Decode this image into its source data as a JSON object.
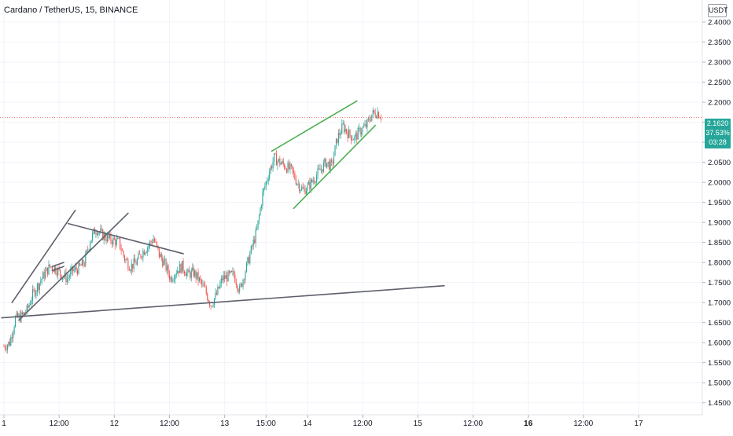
{
  "header": {
    "symbol_title": "Cardano / TetherUS, 15, BINANCE",
    "currency_button": "USDT"
  },
  "price_tag": {
    "price": "2.1620",
    "percent": "37.53%",
    "countdown": "03:28"
  },
  "colors": {
    "up_candle": "#26a69a",
    "down_candle": "#ef5350",
    "trendline_gray": "#5d606b",
    "trendline_green": "#4caf50",
    "last_price_line": "#ef5350",
    "grid": "#f0f3fa",
    "axis_text": "#131722"
  },
  "chart_data": {
    "type": "candlestick",
    "symbol": "ADA/USDT",
    "interval": "15",
    "exchange": "BINANCE",
    "ylim": [
      1.42,
      2.455
    ],
    "x_axis_labels": [
      {
        "label": "1",
        "t": 0
      },
      {
        "label": "12:00",
        "t": 48
      },
      {
        "label": "12",
        "t": 96
      },
      {
        "label": "12:00",
        "t": 144
      },
      {
        "label": "13",
        "t": 192
      },
      {
        "label": "15:00",
        "t": 228
      },
      {
        "label": "14",
        "t": 264
      },
      {
        "label": "12:00",
        "t": 312
      },
      {
        "label": "15",
        "t": 360
      },
      {
        "label": "12:00",
        "t": 408
      },
      {
        "label": "16",
        "t": 456
      },
      {
        "label": "12:00",
        "t": 504
      },
      {
        "label": "17",
        "t": 552
      }
    ],
    "bold_x_labels": [
      "16"
    ],
    "y_axis_labels": [
      "2.4000",
      "2.3500",
      "2.3000",
      "2.2500",
      "2.2000",
      "2.1500",
      "2.1000",
      "2.0500",
      "2.0000",
      "1.9500",
      "1.9000",
      "1.8500",
      "1.8000",
      "1.7500",
      "1.7000",
      "1.6500",
      "1.6000",
      "1.5500",
      "1.5000",
      "1.4500"
    ],
    "y_axis_values": [
      2.4,
      2.35,
      2.3,
      2.25,
      2.2,
      2.15,
      2.1,
      2.05,
      2.0,
      1.95,
      1.9,
      1.85,
      1.8,
      1.75,
      1.7,
      1.65,
      1.6,
      1.55,
      1.5,
      1.45
    ],
    "last_price": 2.162,
    "close_path": [
      [
        0,
        1.59
      ],
      [
        5,
        1.6
      ],
      [
        10,
        1.66
      ],
      [
        15,
        1.665
      ],
      [
        20,
        1.68
      ],
      [
        25,
        1.72
      ],
      [
        30,
        1.745
      ],
      [
        35,
        1.77
      ],
      [
        40,
        1.79
      ],
      [
        45,
        1.785
      ],
      [
        50,
        1.77
      ],
      [
        55,
        1.76
      ],
      [
        60,
        1.78
      ],
      [
        65,
        1.785
      ],
      [
        70,
        1.8
      ],
      [
        75,
        1.855
      ],
      [
        80,
        1.885
      ],
      [
        85,
        1.87
      ],
      [
        90,
        1.86
      ],
      [
        95,
        1.855
      ],
      [
        100,
        1.85
      ],
      [
        105,
        1.81
      ],
      [
        110,
        1.79
      ],
      [
        115,
        1.8
      ],
      [
        120,
        1.825
      ],
      [
        125,
        1.84
      ],
      [
        130,
        1.86
      ],
      [
        135,
        1.82
      ],
      [
        140,
        1.795
      ],
      [
        145,
        1.76
      ],
      [
        150,
        1.78
      ],
      [
        155,
        1.79
      ],
      [
        160,
        1.77
      ],
      [
        165,
        1.775
      ],
      [
        170,
        1.755
      ],
      [
        175,
        1.73
      ],
      [
        180,
        1.695
      ],
      [
        185,
        1.72
      ],
      [
        190,
        1.76
      ],
      [
        195,
        1.765
      ],
      [
        200,
        1.77
      ],
      [
        205,
        1.73
      ],
      [
        210,
        1.78
      ],
      [
        215,
        1.83
      ],
      [
        220,
        1.88
      ],
      [
        225,
        1.97
      ],
      [
        230,
        2.02
      ],
      [
        235,
        2.06
      ],
      [
        240,
        2.05
      ],
      [
        245,
        2.04
      ],
      [
        250,
        2.03
      ],
      [
        255,
        2.0
      ],
      [
        260,
        1.98
      ],
      [
        265,
        1.99
      ],
      [
        270,
        2.01
      ],
      [
        275,
        2.03
      ],
      [
        280,
        2.05
      ],
      [
        285,
        2.04
      ],
      [
        290,
        2.11
      ],
      [
        295,
        2.14
      ],
      [
        300,
        2.12
      ],
      [
        305,
        2.11
      ],
      [
        310,
        2.13
      ],
      [
        315,
        2.14
      ],
      [
        320,
        2.17
      ],
      [
        325,
        2.175
      ],
      [
        328,
        2.165
      ]
    ],
    "trendlines": [
      {
        "color": "gray",
        "points": [
          [
            -2,
            1.662
          ],
          [
            383,
            1.742
          ]
        ]
      },
      {
        "color": "gray",
        "points": [
          [
            7,
            1.7
          ],
          [
            62,
            1.93
          ]
        ]
      },
      {
        "color": "gray",
        "points": [
          [
            13,
            1.656
          ],
          [
            108,
            1.923
          ]
        ]
      },
      {
        "color": "gray",
        "points": [
          [
            56,
            1.897
          ],
          [
            156,
            1.822
          ]
        ]
      },
      {
        "color": "gray",
        "points": [
          [
            42,
            1.79
          ],
          [
            52,
            1.8
          ]
        ]
      },
      {
        "color": "gray",
        "points": [
          [
            42,
            1.78
          ],
          [
            52,
            1.79
          ]
        ]
      },
      {
        "color": "green",
        "points": [
          [
            233,
            2.078
          ],
          [
            307,
            2.203
          ]
        ]
      },
      {
        "color": "green",
        "points": [
          [
            252,
            1.935
          ],
          [
            323,
            2.142
          ]
        ]
      }
    ]
  }
}
